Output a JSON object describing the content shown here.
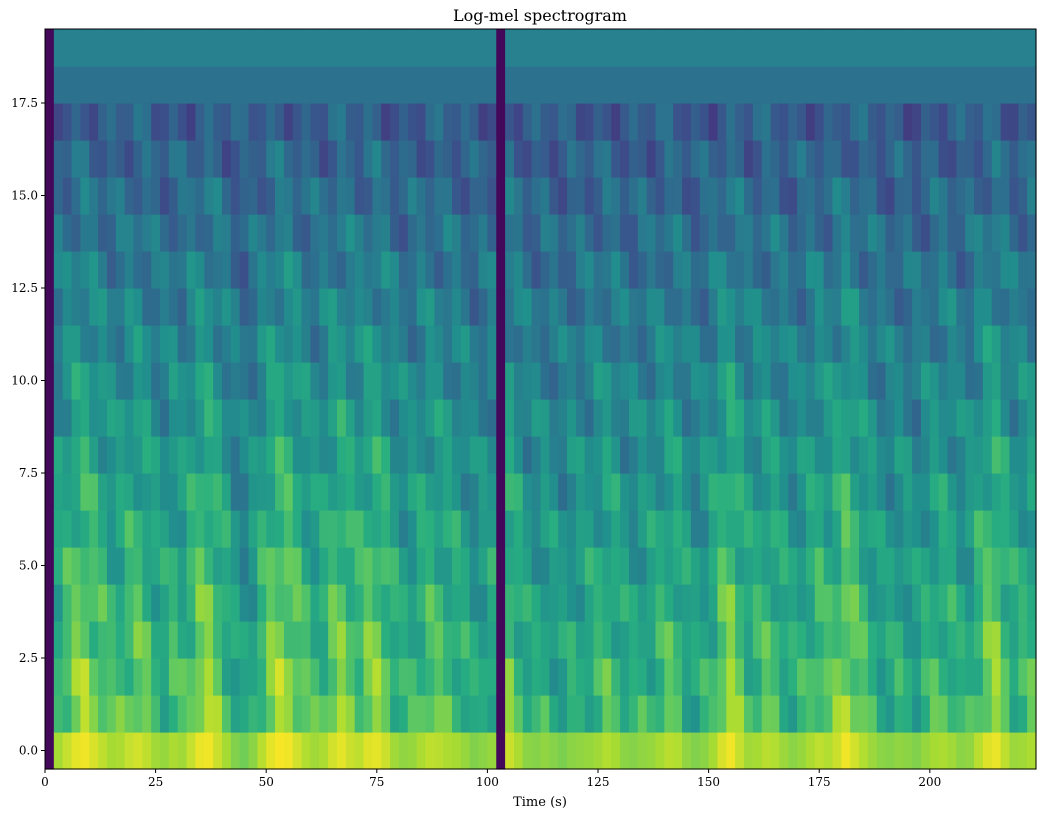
{
  "chart_data": {
    "type": "heatmap",
    "title": "Log-mel spectrogram",
    "xlabel": "Time (s)",
    "ylabel": "",
    "colormap": "viridis",
    "xlim": [
      0,
      224
    ],
    "ylim": [
      -0.5,
      19.5
    ],
    "grid": false,
    "legend": "none",
    "x_ticks": [
      0,
      25,
      50,
      75,
      100,
      125,
      150,
      175,
      200
    ],
    "x_tick_labels": [
      "0",
      "25",
      "50",
      "75",
      "100",
      "125",
      "150",
      "175",
      "200"
    ],
    "y_ticks": [
      0.0,
      2.5,
      5.0,
      7.5,
      10.0,
      12.5,
      15.0,
      17.5
    ],
    "y_tick_labels": [
      "0.0",
      "2.5",
      "5.0",
      "7.5",
      "10.0",
      "12.5",
      "15.0",
      "17.5"
    ],
    "n_mel_bins": 20,
    "time_frames": [
      0,
      2,
      4,
      6,
      8,
      10,
      12,
      14,
      16,
      18,
      20,
      22,
      24,
      26,
      28,
      30,
      32,
      34,
      36,
      38,
      40,
      42,
      44,
      46,
      48,
      50,
      52,
      54,
      56,
      58,
      60,
      62,
      64,
      66,
      68,
      70,
      72,
      74,
      76,
      78,
      80,
      82,
      84,
      86,
      88,
      90,
      92,
      94,
      96,
      98,
      100,
      102,
      104,
      106,
      108,
      110,
      112,
      114,
      116,
      118,
      120,
      122,
      124,
      126,
      128,
      130,
      132,
      134,
      136,
      138,
      140,
      142,
      144,
      146,
      148,
      150,
      152,
      154,
      156,
      158,
      160,
      162,
      164,
      166,
      168,
      170,
      172,
      174,
      176,
      178,
      180,
      182,
      184,
      186,
      188,
      190,
      192,
      194,
      196,
      198,
      200,
      202,
      204,
      206,
      208,
      210,
      212,
      214,
      216,
      218,
      220,
      222
    ],
    "frame_width": 2,
    "intensity_range": [
      0,
      1
    ],
    "activity": [
      0.0,
      0.72,
      0.82,
      0.92,
      0.96,
      0.88,
      0.8,
      0.72,
      0.74,
      0.82,
      0.86,
      0.8,
      0.7,
      0.66,
      0.74,
      0.7,
      0.82,
      0.94,
      0.96,
      0.84,
      0.72,
      0.58,
      0.52,
      0.62,
      0.78,
      0.92,
      0.98,
      0.96,
      0.86,
      0.76,
      0.7,
      0.74,
      0.86,
      0.92,
      0.84,
      0.8,
      0.9,
      0.92,
      0.84,
      0.7,
      0.64,
      0.66,
      0.74,
      0.8,
      0.78,
      0.74,
      0.72,
      0.66,
      0.58,
      0.62,
      0.66,
      0.0,
      0.84,
      0.74,
      0.62,
      0.6,
      0.64,
      0.6,
      0.56,
      0.62,
      0.64,
      0.66,
      0.7,
      0.76,
      0.72,
      0.62,
      0.6,
      0.64,
      0.66,
      0.72,
      0.78,
      0.76,
      0.64,
      0.58,
      0.62,
      0.72,
      0.88,
      0.96,
      0.82,
      0.7,
      0.72,
      0.78,
      0.76,
      0.68,
      0.62,
      0.66,
      0.74,
      0.8,
      0.76,
      0.84,
      0.96,
      0.86,
      0.76,
      0.68,
      0.62,
      0.6,
      0.64,
      0.62,
      0.58,
      0.66,
      0.72,
      0.74,
      0.7,
      0.62,
      0.64,
      0.78,
      0.9,
      0.94,
      0.8,
      0.68,
      0.7,
      0.74
    ]
  }
}
